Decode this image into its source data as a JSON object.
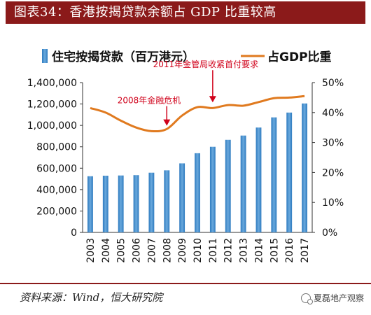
{
  "header": {
    "title": "图表34：香港按揭贷款余额占 GDP 比重较高"
  },
  "footer": {
    "source": "资料来源：Wind，恒大研究院",
    "watermark": "夏磊地产观察"
  },
  "colors": {
    "bar": "#2e7bbf",
    "bar_light": "#6aa9dd",
    "line": "#e07a1f",
    "annotation": "#d0021b",
    "title_bg": "#8b1a1a"
  },
  "chart_data": {
    "type": "bar+line",
    "categories": [
      "2003",
      "2004",
      "2005",
      "2006",
      "2007",
      "2008",
      "2009",
      "2010",
      "2011",
      "2012",
      "2013",
      "2014",
      "2015",
      "2016",
      "2017"
    ],
    "series": [
      {
        "name": "住宅按揭贷款（百万港元）",
        "type": "bar",
        "axis": "left",
        "values": [
          525000,
          530000,
          532000,
          535000,
          558000,
          580000,
          645000,
          740000,
          800000,
          865000,
          905000,
          980000,
          1075000,
          1120000,
          1205000
        ]
      },
      {
        "name": "占GDP比重",
        "type": "line",
        "axis": "right",
        "values": [
          41.5,
          40.0,
          37.3,
          35.0,
          33.8,
          34.5,
          39.0,
          41.8,
          41.5,
          42.5,
          42.3,
          43.5,
          44.8,
          45.0,
          45.5
        ]
      }
    ],
    "y_left": {
      "lim": [
        0,
        1400000
      ],
      "ticks": [
        "0",
        "200,000",
        "400,000",
        "600,000",
        "800,000",
        "1,000,000",
        "1,200,000",
        "1,400,000"
      ]
    },
    "y_right": {
      "lim": [
        0,
        50
      ],
      "ticks": [
        "0%",
        "10%",
        "20%",
        "30%",
        "40%",
        "50%"
      ]
    },
    "annotations": [
      {
        "text": "2008年金融危机",
        "category": "2008",
        "target_axis": "right",
        "target_value": 34.2
      },
      {
        "text": "2011年金管局收紧首付要求",
        "category": "2011",
        "target_axis": "right",
        "target_value": 42.0
      }
    ],
    "legend": {
      "position": "top"
    },
    "grid": false
  }
}
